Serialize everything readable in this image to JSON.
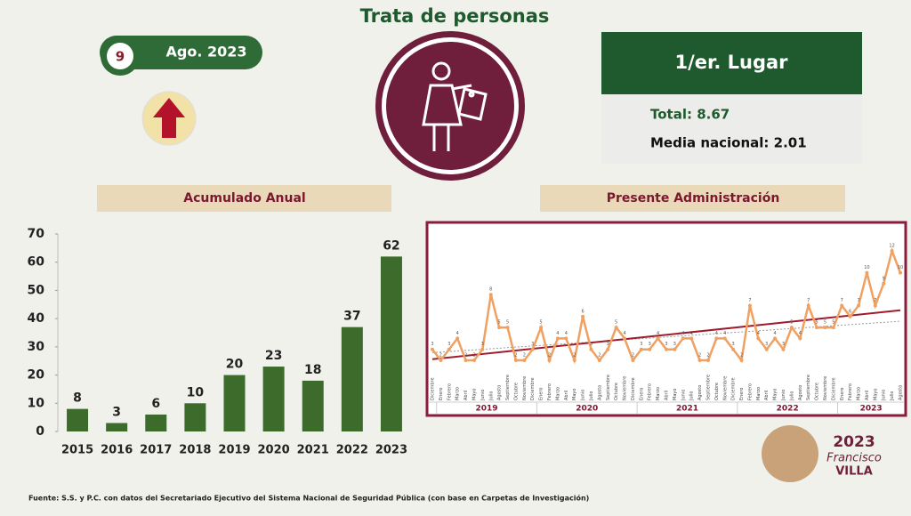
{
  "header": {
    "title": "Trata de personas",
    "rank": "9",
    "date": "Ago. 2023"
  },
  "ranking": {
    "place": "1/er. Lugar",
    "total": "Total: 8.67",
    "media": "Media nacional: 2.01"
  },
  "sections": {
    "left": "Acumulado Anual",
    "right": "Presente Administración"
  },
  "source": "Fuente: S.S. y P.C. con datos del Secretariado Ejecutivo del Sistema Nacional de Seguridad Pública (con base en Carpetas de Investigación)",
  "logo": {
    "year": "2023",
    "name1": "Francisco",
    "name2": "VILLA"
  },
  "chart_data": [
    {
      "type": "bar",
      "categories": [
        "2015",
        "2016",
        "2017",
        "2018",
        "2019",
        "2020",
        "2021",
        "2022",
        "2023"
      ],
      "values": [
        8,
        3,
        6,
        10,
        20,
        23,
        18,
        37,
        62
      ],
      "color": "#3d6b2b",
      "ylim": [
        0,
        70
      ],
      "yticks": [
        0,
        10,
        20,
        30,
        40,
        50,
        60,
        70
      ]
    },
    {
      "type": "line",
      "color": "#f0a060",
      "trend_color": "#a01c2c",
      "categories": [
        "Diciembre",
        "Enero",
        "Febrero",
        "Marzo",
        "Abril",
        "Mayo",
        "Junio",
        "Julio",
        "Agosto",
        "Septiembre",
        "Octubre",
        "Noviembre",
        "Diciembre",
        "Enero",
        "Febrero",
        "Marzo",
        "Abril",
        "Mayo",
        "Junio",
        "Julio",
        "Agosto",
        "Septiembre",
        "Octubre",
        "Noviembre",
        "Diciembre",
        "Enero",
        "Febrero",
        "Marzo",
        "Abril",
        "Mayo",
        "Junio",
        "Julio",
        "Agosto",
        "Septiembre",
        "Octubre",
        "Noviembre",
        "Diciembre",
        "Enero",
        "Febrero",
        "Marzo",
        "Abril",
        "Mayo",
        "Junio",
        "Julio",
        "Agosto",
        "Septiembre",
        "Octubre",
        "Noviembre",
        "Diciembre",
        "Enero",
        "Febrero",
        "Marzo",
        "Abril",
        "Mayo",
        "Junio",
        "Julio",
        "Agosto"
      ],
      "values": [
        3,
        2,
        3,
        4,
        2,
        2,
        3,
        8,
        5,
        5,
        2,
        2,
        3,
        5,
        2,
        4,
        4,
        2,
        6,
        3,
        2,
        3,
        5,
        4,
        2,
        3,
        3,
        4,
        3,
        3,
        4,
        4,
        2,
        2,
        4,
        4,
        3,
        2,
        7,
        4,
        3,
        4,
        3,
        5,
        4,
        7,
        5,
        5,
        5,
        7,
        6,
        7,
        10,
        7,
        9,
        12,
        10
      ],
      "years": [
        "2019",
        "2020",
        "2021",
        "2022",
        "2023"
      ]
    }
  ]
}
